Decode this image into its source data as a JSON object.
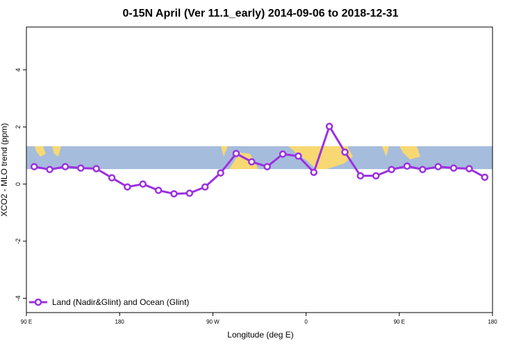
{
  "chart_data": {
    "type": "line",
    "title": "0-15N April (Ver 11.1_early)   2014-09-06 to 2018-12-31",
    "x_label": "Longitude (deg E)",
    "y_label": "XCO2 - MLO trend (ppm)",
    "xlim": [
      90,
      540
    ],
    "ylim": [
      -4.5,
      5.5
    ],
    "xticks": [
      {
        "value": 90,
        "label": "90 E"
      },
      {
        "value": 180,
        "label": "180"
      },
      {
        "value": 270,
        "label": "90 W"
      },
      {
        "value": 360,
        "label": "0"
      },
      {
        "value": 450,
        "label": "90 E"
      },
      {
        "value": 540,
        "label": "180"
      }
    ],
    "yticks": [
      -4,
      -2,
      0,
      2,
      4
    ],
    "legend_position": "bottom-left",
    "x": [
      97.5,
      112.5,
      127.5,
      142.5,
      157.5,
      172.5,
      187.5,
      202.5,
      217.5,
      232.5,
      247.5,
      262.5,
      277.5,
      292.5,
      307.5,
      322.5,
      337.5,
      352.5,
      367.5,
      382.5,
      397.5,
      412.5,
      427.5,
      442.5,
      457.5,
      472.5,
      487.5,
      502.5,
      517.5,
      532.5
    ],
    "series": [
      {
        "name": "Land (Nadir&Glint) and Ocean (Glint)",
        "color": "#9b30e0",
        "values": [
          0.61,
          0.51,
          0.61,
          0.56,
          0.54,
          0.22,
          -0.1,
          0.0,
          -0.22,
          -0.34,
          -0.32,
          -0.1,
          0.39,
          1.07,
          0.78,
          0.61,
          1.05,
          0.98,
          0.41,
          2.02,
          1.12,
          0.29,
          0.29,
          0.51,
          0.63,
          0.51,
          0.61,
          0.56,
          0.54,
          0.24
        ]
      }
    ]
  }
}
